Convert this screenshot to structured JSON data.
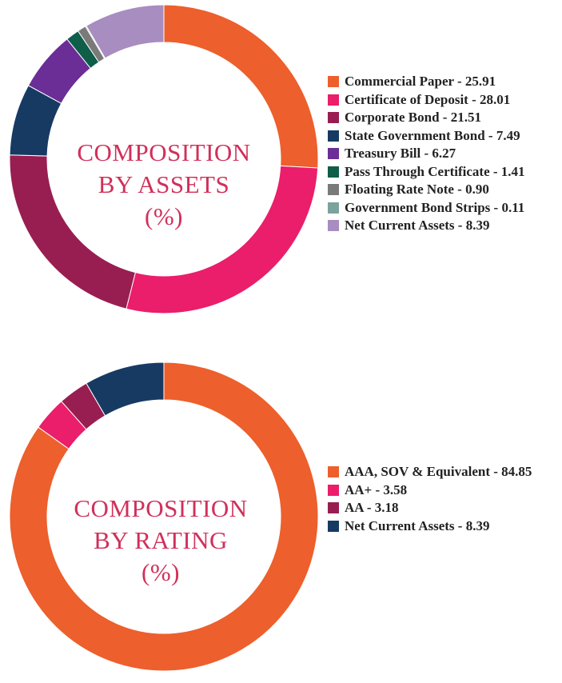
{
  "chart_data": [
    {
      "type": "pie",
      "title_lines": [
        "COMPOSITION",
        "BY ASSETS",
        "(%)"
      ],
      "colors": {
        "title": "#d0305a"
      },
      "legend": "right",
      "series": [
        {
          "name": "Commercial Paper",
          "value": 25.91,
          "color": "#ed5f2c"
        },
        {
          "name": "Certificate of Deposit",
          "value": 28.01,
          "color": "#ea1e6a"
        },
        {
          "name": "Corporate Bond",
          "value": 21.51,
          "color": "#981e51"
        },
        {
          "name": "State Government Bond",
          "value": 7.49,
          "color": "#173a62"
        },
        {
          "name": "Treasury Bill",
          "value": 6.27,
          "color": "#6b2d96"
        },
        {
          "name": "Pass Through Certificate",
          "value": 1.41,
          "color": "#0f5e49"
        },
        {
          "name": "Floating Rate Note",
          "value": 0.9,
          "color": "#7a7a7a"
        },
        {
          "name": "Government Bond Strips",
          "value": 0.11,
          "color": "#7aa39b"
        },
        {
          "name": "Net Current Assets",
          "value": 8.39,
          "color": "#a88dc0"
        }
      ],
      "legend_labels": [
        "Commercial Paper - 25.91",
        "Certificate of Deposit - 28.01",
        "Corporate Bond - 21.51",
        "State Government Bond - 7.49",
        "Treasury Bill - 6.27",
        "Pass Through Certificate - 1.41",
        "Floating Rate Note - 0.90",
        "Government Bond Strips - 0.11",
        "Net Current Assets - 8.39"
      ]
    },
    {
      "type": "pie",
      "title_lines": [
        "COMPOSITION",
        "BY RATING",
        "(%)"
      ],
      "colors": {
        "title": "#d0305a"
      },
      "legend": "right",
      "series": [
        {
          "name": "AAA, SOV & Equivalent",
          "value": 84.85,
          "color": "#ed5f2c"
        },
        {
          "name": "AA+",
          "value": 3.58,
          "color": "#ea1e6a"
        },
        {
          "name": "AA",
          "value": 3.18,
          "color": "#981e51"
        },
        {
          "name": "Net Current Assets",
          "value": 8.39,
          "color": "#173a62"
        }
      ],
      "legend_labels": [
        "AAA, SOV & Equivalent - 84.85",
        "AA+ - 3.58",
        "AA - 3.18",
        "Net Current Assets - 8.39"
      ]
    }
  ]
}
